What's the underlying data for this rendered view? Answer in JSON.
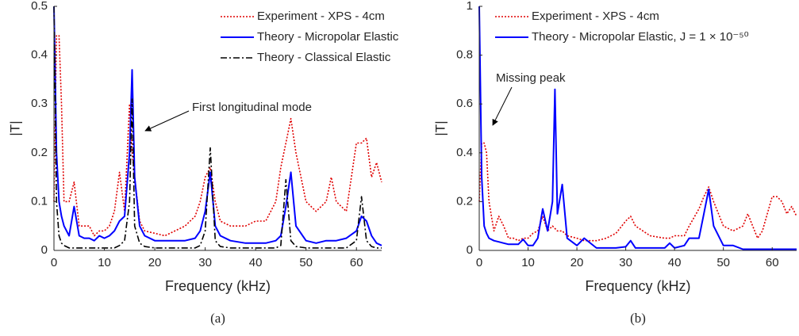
{
  "chart_data": [
    {
      "type": "line",
      "caption": "(a)",
      "x_label": "Frequency (kHz)",
      "y_label": "|T|",
      "annotation": "First longitudinal mode",
      "xlim": [
        0,
        65
      ],
      "ylim": [
        0,
        0.5
      ],
      "xticks": [
        0,
        10,
        20,
        30,
        40,
        50,
        60
      ],
      "yticks": [
        0,
        0.1,
        0.2,
        0.3,
        0.4,
        0.5
      ],
      "x": [
        0,
        0.5,
        1,
        1.5,
        2,
        3,
        4,
        5,
        6,
        7,
        8,
        9,
        10,
        11,
        12,
        13,
        14,
        15,
        15.5,
        16,
        17,
        18,
        20,
        22,
        24,
        26,
        28,
        29,
        30,
        31,
        32,
        33,
        35,
        38,
        40,
        42,
        44,
        45,
        46,
        47,
        48,
        50,
        52,
        54,
        55,
        56,
        58,
        60,
        61,
        62,
        63,
        64,
        65
      ],
      "series": [
        {
          "name": "Experiment - XPS - 4cm",
          "color": "#e00000",
          "linestyle": "dotted",
          "values": [
            0.1,
            0.44,
            0.44,
            0.3,
            0.1,
            0.1,
            0.14,
            0.05,
            0.05,
            0.05,
            0.03,
            0.04,
            0.04,
            0.05,
            0.08,
            0.16,
            0.08,
            0.3,
            0.2,
            0.15,
            0.06,
            0.04,
            0.035,
            0.03,
            0.04,
            0.05,
            0.07,
            0.1,
            0.15,
            0.17,
            0.1,
            0.06,
            0.05,
            0.05,
            0.06,
            0.06,
            0.1,
            0.17,
            0.22,
            0.27,
            0.2,
            0.1,
            0.08,
            0.1,
            0.15,
            0.1,
            0.08,
            0.22,
            0.22,
            0.23,
            0.15,
            0.18,
            0.14
          ]
        },
        {
          "name": "Theory - Micropolar Elastic",
          "color": "#0000ff",
          "linestyle": "solid",
          "values": [
            0.5,
            0.2,
            0.1,
            0.07,
            0.05,
            0.03,
            0.09,
            0.03,
            0.025,
            0.025,
            0.02,
            0.03,
            0.025,
            0.03,
            0.04,
            0.06,
            0.07,
            0.2,
            0.37,
            0.15,
            0.05,
            0.03,
            0.02,
            0.02,
            0.02,
            0.02,
            0.025,
            0.04,
            0.08,
            0.16,
            0.05,
            0.03,
            0.02,
            0.015,
            0.015,
            0.015,
            0.02,
            0.03,
            0.09,
            0.16,
            0.05,
            0.02,
            0.015,
            0.02,
            0.02,
            0.02,
            0.025,
            0.04,
            0.07,
            0.06,
            0.03,
            0.015,
            0.01
          ]
        },
        {
          "name": "Theory - Classical Elastic",
          "color": "#000000",
          "linestyle": "dashdot",
          "values": [
            0.5,
            0.1,
            0.03,
            0.015,
            0.01,
            0.005,
            0.005,
            0.005,
            0.005,
            0.005,
            0.005,
            0.005,
            0.005,
            0.005,
            0.005,
            0.01,
            0.02,
            0.1,
            0.31,
            0.05,
            0.015,
            0.008,
            0.005,
            0.005,
            0.005,
            0.005,
            0.005,
            0.01,
            0.04,
            0.21,
            0.02,
            0.008,
            0.005,
            0.005,
            0.005,
            0.005,
            0.005,
            0.01,
            0.145,
            0.02,
            0.008,
            0.005,
            0.005,
            0.005,
            0.005,
            0.005,
            0.005,
            0.02,
            0.11,
            0.02,
            0.008,
            0.005,
            0.005
          ]
        }
      ]
    },
    {
      "type": "line",
      "caption": "(b)",
      "x_label": "Frequency (kHz)",
      "y_label": "|T|",
      "annotation": "Missing peak",
      "xlim": [
        0,
        65
      ],
      "ylim": [
        0,
        1
      ],
      "xticks": [
        0,
        10,
        20,
        30,
        40,
        50,
        60
      ],
      "yticks": [
        0,
        0.2,
        0.4,
        0.6,
        0.8,
        1
      ],
      "x": [
        0,
        0.5,
        1,
        1.5,
        2,
        3,
        4,
        5,
        6,
        7,
        8,
        9,
        10,
        11,
        12,
        13,
        14,
        15,
        15.5,
        16,
        17,
        18,
        20,
        21.5,
        24,
        26,
        28,
        30,
        31,
        32,
        35,
        38,
        39,
        40,
        42,
        43,
        45,
        46,
        47,
        48,
        50,
        52,
        54,
        55,
        56,
        57,
        58,
        60,
        61,
        62,
        63,
        64,
        65
      ],
      "series": [
        {
          "name": "Experiment - XPS - 4cm",
          "color": "#e00000",
          "linestyle": "dotted",
          "values": [
            0.2,
            0.44,
            0.44,
            0.4,
            0.2,
            0.08,
            0.14,
            0.1,
            0.05,
            0.05,
            0.04,
            0.05,
            0.05,
            0.07,
            0.08,
            0.14,
            0.08,
            0.1,
            0.09,
            0.08,
            0.08,
            0.06,
            0.05,
            0.04,
            0.04,
            0.05,
            0.07,
            0.12,
            0.14,
            0.1,
            0.06,
            0.05,
            0.05,
            0.06,
            0.06,
            0.1,
            0.17,
            0.22,
            0.26,
            0.2,
            0.1,
            0.08,
            0.1,
            0.15,
            0.1,
            0.05,
            0.08,
            0.22,
            0.22,
            0.2,
            0.15,
            0.18,
            0.14
          ]
        },
        {
          "name": "Theory - Micropolar Elastic, J = 1 × 10⁻⁵⁰",
          "color": "#0000ff",
          "linestyle": "solid",
          "values": [
            1,
            0.3,
            0.1,
            0.07,
            0.05,
            0.04,
            0.035,
            0.03,
            0.025,
            0.025,
            0.025,
            0.045,
            0.02,
            0.02,
            0.05,
            0.17,
            0.08,
            0.2,
            0.66,
            0.15,
            0.27,
            0.05,
            0.02,
            0.05,
            0.01,
            0.01,
            0.01,
            0.015,
            0.04,
            0.01,
            0.01,
            0.01,
            0.03,
            0.01,
            0.02,
            0.05,
            0.05,
            0.15,
            0.25,
            0.1,
            0.02,
            0.02,
            0.005,
            0.005,
            0.005,
            0.005,
            0.005,
            0.005,
            0.005,
            0.005,
            0.005,
            0.005,
            0.005
          ]
        }
      ]
    }
  ]
}
